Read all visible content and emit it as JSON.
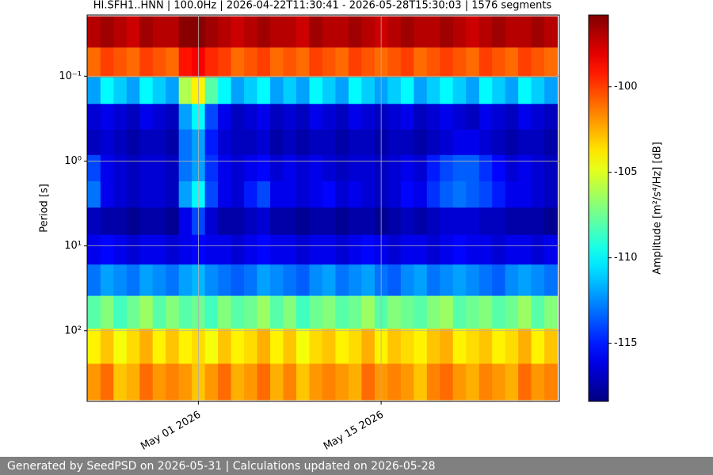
{
  "chart_data": {
    "type": "heatmap",
    "title": "HI.SFH1..HNN | 100.0Hz | 2026-04-22T11:30:41 - 2026-05-28T15:30:03 | 1576 segments",
    "y_label": "Period [s]",
    "colorbar": {
      "label": "Amplitude [m²/s⁴/Hz] [dB]",
      "clim": [
        -118.4,
        -95.8
      ],
      "ticks": [
        -100,
        -105,
        -110,
        -115
      ],
      "colormap": "jet"
    },
    "xlim": [
      "2026-04-22T11:30:41",
      "2026-05-28T15:30:03"
    ],
    "xticks": [
      {
        "value": "2026-05-01",
        "label": "May 01 2026"
      },
      {
        "value": "2026-05-15",
        "label": "May 15 2026"
      }
    ],
    "ylim": [
      0.019,
      680
    ],
    "y_log": true,
    "y_inverted": true,
    "yticks": [
      {
        "value": 0.1,
        "label": "10⁻¹"
      },
      {
        "value": 1,
        "label": "10⁰"
      },
      {
        "value": 10,
        "label": "10¹"
      },
      {
        "value": 100,
        "label": "10²"
      }
    ],
    "grid": true,
    "x": [
      "2026-04-23",
      "2026-04-24",
      "2026-04-25",
      "2026-04-26",
      "2026-04-27",
      "2026-04-28",
      "2026-04-29",
      "2026-04-30",
      "2026-05-01",
      "2026-05-02",
      "2026-05-03",
      "2026-05-04",
      "2026-05-05",
      "2026-05-06",
      "2026-05-07",
      "2026-05-08",
      "2026-05-09",
      "2026-05-10",
      "2026-05-11",
      "2026-05-12",
      "2026-05-13",
      "2026-05-14",
      "2026-05-15",
      "2026-05-16",
      "2026-05-17",
      "2026-05-18",
      "2026-05-19",
      "2026-05-20",
      "2026-05-21",
      "2026-05-22",
      "2026-05-23",
      "2026-05-24",
      "2026-05-25",
      "2026-05-26",
      "2026-05-27",
      "2026-05-28"
    ],
    "y": [
      0.03,
      0.07,
      0.15,
      0.3,
      0.6,
      1.2,
      2.5,
      5,
      11,
      25,
      60,
      150,
      400
    ],
    "z": [
      [
        -97,
        -96.5,
        -97,
        -97.5,
        -96.5,
        -97,
        -97,
        -96,
        -96,
        -96.5,
        -97,
        -97.5,
        -97,
        -96.5,
        -97,
        -97,
        -97.5,
        -96.5,
        -97,
        -97,
        -96.5,
        -97,
        -97.5,
        -97,
        -96.5,
        -97,
        -97,
        -96.5,
        -97,
        -97.5,
        -97,
        -96.5,
        -97,
        -97,
        -96.5,
        -97
      ],
      [
        -101,
        -100,
        -100.5,
        -101,
        -100,
        -100.5,
        -101,
        -99,
        -98.5,
        -99.5,
        -100,
        -101,
        -100.5,
        -100,
        -101,
        -100.5,
        -101,
        -100,
        -100.5,
        -101,
        -100,
        -100.5,
        -101,
        -100.5,
        -100,
        -101,
        -100.5,
        -100,
        -100.5,
        -101,
        -100,
        -100.5,
        -101,
        -100,
        -100.5,
        -101
      ],
      [
        -112,
        -110,
        -111,
        -112,
        -110,
        -111,
        -112,
        -106,
        -104,
        -108,
        -110,
        -112,
        -111,
        -110,
        -112,
        -111,
        -112,
        -110,
        -111,
        -112,
        -110,
        -111,
        -112,
        -111,
        -110,
        -112,
        -111,
        -110,
        -111,
        -112,
        -110,
        -111,
        -112,
        -110,
        -111,
        -112
      ],
      [
        -116.5,
        -116,
        -116.5,
        -117,
        -116,
        -116.5,
        -117,
        -112,
        -110,
        -114,
        -116,
        -117,
        -116.5,
        -116,
        -117,
        -116.5,
        -117,
        -116,
        -116.5,
        -117,
        -116,
        -116.5,
        -117,
        -116.5,
        -116,
        -117,
        -116.5,
        -116,
        -116.5,
        -117,
        -116,
        -116.5,
        -117,
        -116,
        -116.5,
        -117
      ],
      [
        -117,
        -116.5,
        -117,
        -117.5,
        -117,
        -117,
        -117.5,
        -113,
        -112,
        -115,
        -116.5,
        -117,
        -117,
        -116.5,
        -117.5,
        -117,
        -117.5,
        -117,
        -117,
        -117.5,
        -117,
        -117,
        -117.5,
        -117,
        -117,
        -117.5,
        -117,
        -116.5,
        -116,
        -116,
        -116.5,
        -117,
        -117.5,
        -117,
        -117,
        -117.5
      ],
      [
        -114,
        -116,
        -116.5,
        -117,
        -116.5,
        -116.5,
        -117,
        -113,
        -112,
        -114.5,
        -116,
        -116.5,
        -116,
        -115.5,
        -116.5,
        -116,
        -116.5,
        -116,
        -116.5,
        -117,
        -116.5,
        -116.5,
        -117,
        -116.5,
        -116,
        -116.5,
        -115,
        -114,
        -113.5,
        -113.5,
        -114.5,
        -115.5,
        -116.5,
        -116,
        -116.5,
        -117
      ],
      [
        -113,
        -116,
        -116.5,
        -117,
        -116.5,
        -116.5,
        -117,
        -112,
        -110,
        -114,
        -116,
        -116.5,
        -115,
        -114,
        -116,
        -116,
        -116.5,
        -116,
        -115.5,
        -116.5,
        -116,
        -116.5,
        -117,
        -116.5,
        -115.5,
        -116,
        -114.5,
        -113.5,
        -113,
        -113.5,
        -114,
        -115,
        -116,
        -116,
        -116.5,
        -117
      ],
      [
        -117,
        -117.5,
        -117.5,
        -118,
        -117.5,
        -117.5,
        -118,
        -116,
        -114,
        -116.5,
        -117.5,
        -117.5,
        -117,
        -116.5,
        -117.5,
        -117.5,
        -118,
        -117.5,
        -117.5,
        -118,
        -117.5,
        -117.5,
        -118,
        -117.5,
        -117,
        -117.5,
        -117,
        -116.5,
        -116.5,
        -116.5,
        -117,
        -117,
        -117.5,
        -117.5,
        -117.5,
        -118
      ],
      [
        -116,
        -115.5,
        -116,
        -116.5,
        -116,
        -116,
        -116.5,
        -116,
        -115.5,
        -116,
        -116,
        -116.5,
        -116,
        -115.5,
        -116,
        -116,
        -116.5,
        -116,
        -116,
        -116.5,
        -116,
        -115.5,
        -116,
        -116.5,
        -116,
        -116,
        -116.5,
        -116,
        -115.5,
        -116,
        -116,
        -116.5,
        -116,
        -116,
        -116.5,
        -116
      ],
      [
        -113,
        -112,
        -112.5,
        -113,
        -112,
        -112.5,
        -113,
        -112,
        -111.5,
        -112.5,
        -113,
        -113.5,
        -113,
        -112,
        -112.5,
        -113,
        -113.5,
        -112.5,
        -112,
        -113,
        -112.5,
        -112,
        -113,
        -113.5,
        -112.5,
        -112,
        -113,
        -112.5,
        -112,
        -112.5,
        -113,
        -113.5,
        -112.5,
        -112,
        -112.5,
        -113
      ],
      [
        -108,
        -107,
        -108.5,
        -107.5,
        -106.5,
        -108,
        -107,
        -108,
        -107.5,
        -108.5,
        -107,
        -108,
        -107.5,
        -106.5,
        -108,
        -107,
        -108.5,
        -107.5,
        -107,
        -108,
        -107.5,
        -106.5,
        -108,
        -107,
        -107.5,
        -108,
        -107,
        -106.5,
        -108,
        -107.5,
        -107,
        -108,
        -107.5,
        -106.5,
        -108,
        -107
      ],
      [
        -104,
        -103,
        -104.5,
        -103.5,
        -102.5,
        -104,
        -103,
        -104,
        -103.5,
        -104.5,
        -103,
        -104,
        -103.5,
        -102.5,
        -104,
        -103,
        -104.5,
        -103.5,
        -103,
        -104,
        -103.5,
        -102.5,
        -104,
        -103,
        -103.5,
        -104,
        -103,
        -102.5,
        -104,
        -103.5,
        -103,
        -104,
        -103.5,
        -102.5,
        -104,
        -103
      ],
      [
        -102,
        -101,
        -103,
        -102.5,
        -101,
        -102,
        -101.5,
        -102,
        -103,
        -102,
        -101,
        -102.5,
        -102,
        -101,
        -102.5,
        -101.5,
        -103,
        -102,
        -101.5,
        -102,
        -102.5,
        -101,
        -102,
        -101.5,
        -102,
        -103,
        -101.5,
        -101,
        -102,
        -102.5,
        -101.5,
        -102,
        -102.5,
        -101,
        -102,
        -101.5
      ]
    ]
  },
  "footer": {
    "text": "Generated by SeedPSD on 2026-05-31 | Calculations updated on 2026-05-28"
  }
}
